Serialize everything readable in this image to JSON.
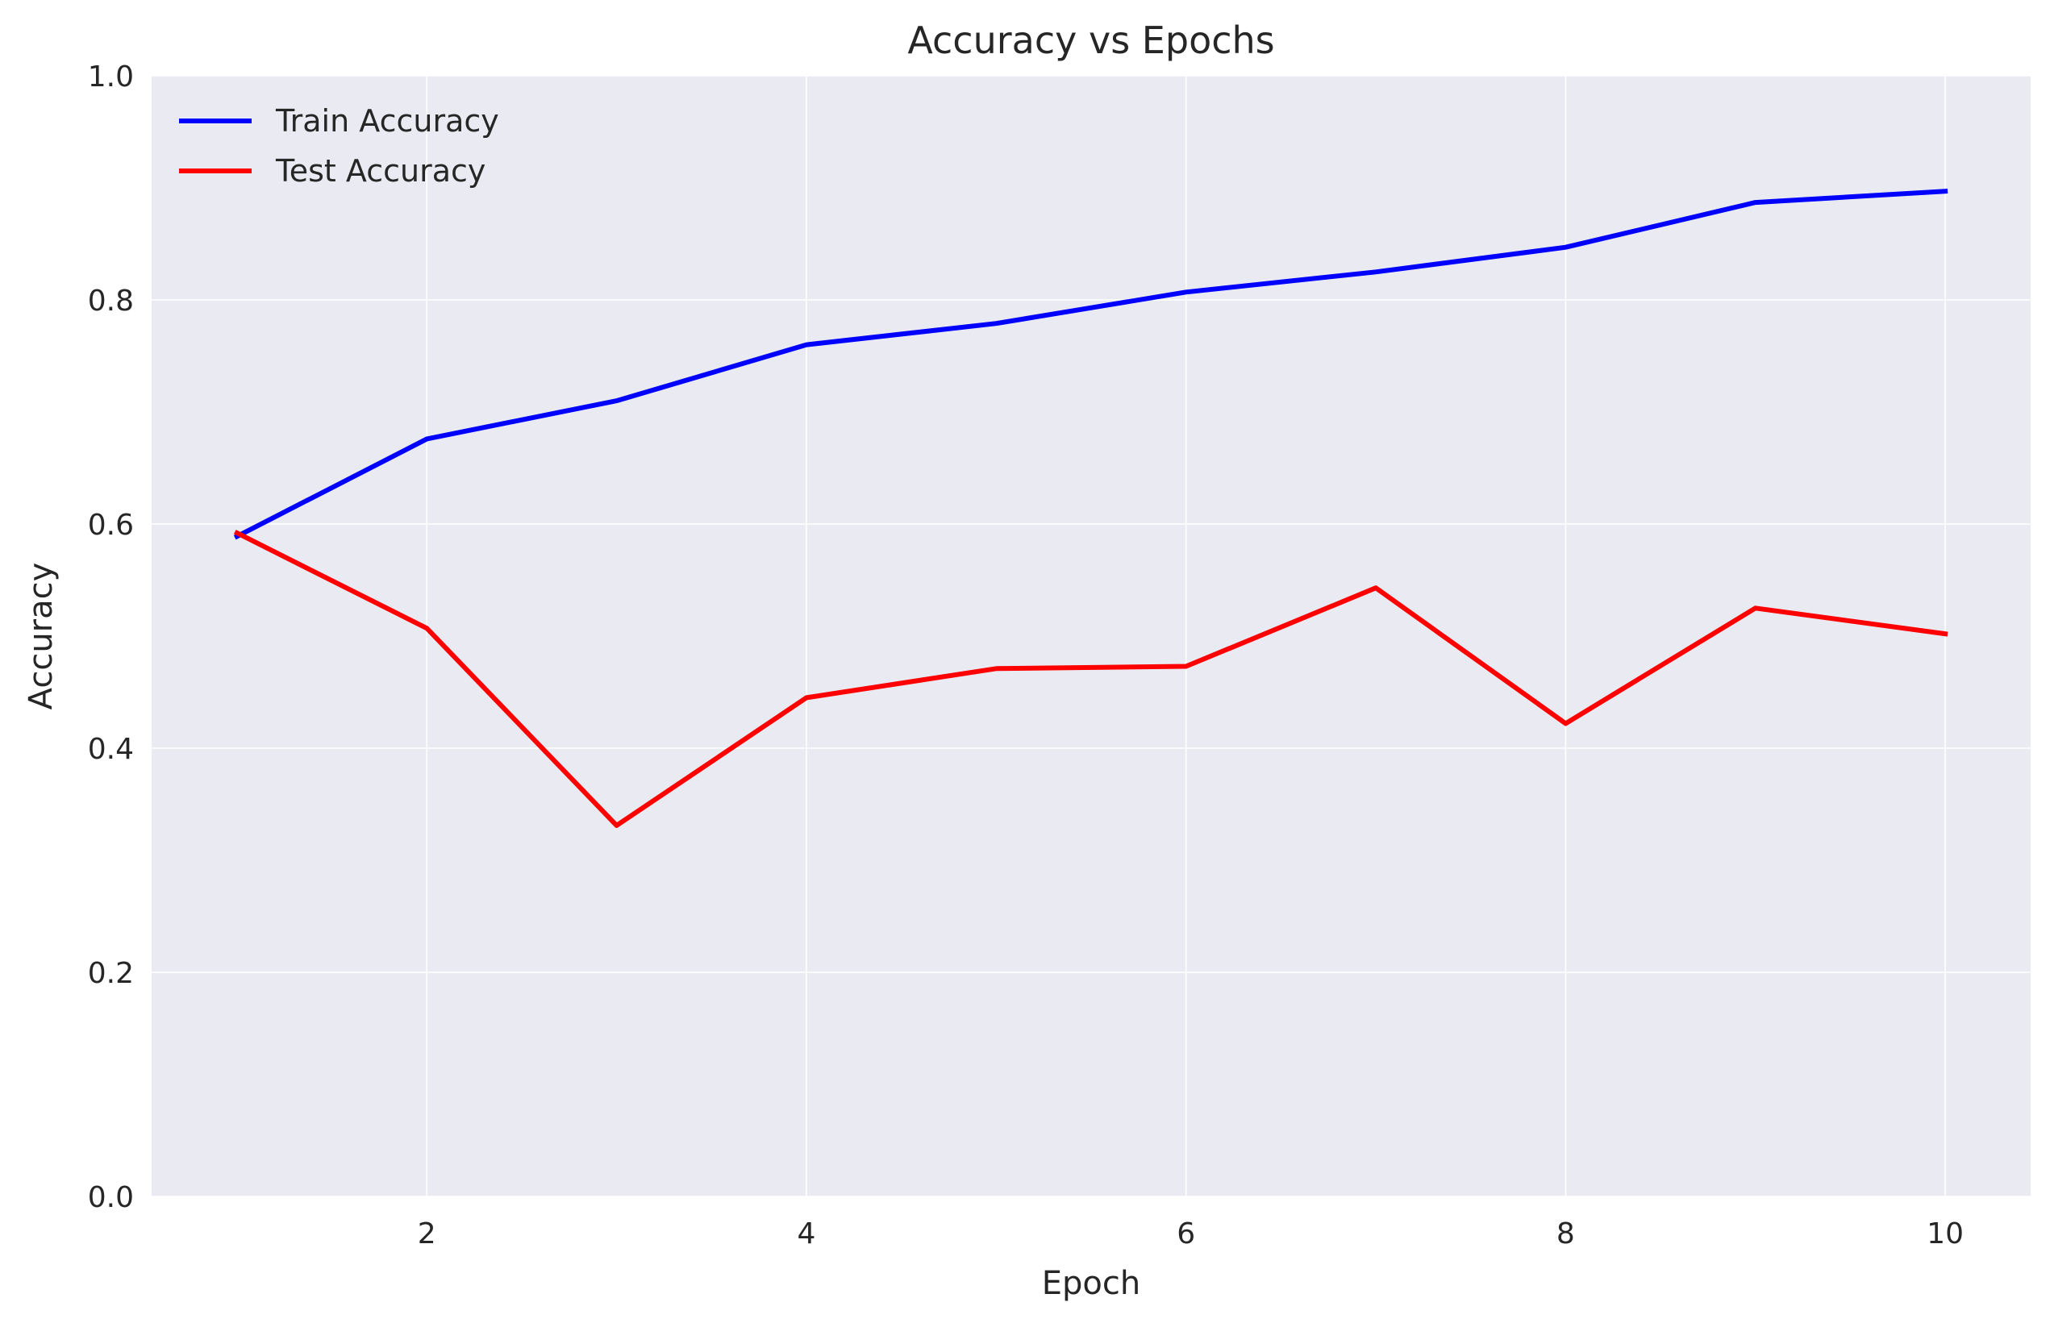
{
  "chart_data": {
    "type": "line",
    "title": "Accuracy vs Epochs",
    "xlabel": "Epoch",
    "ylabel": "Accuracy",
    "x": [
      1,
      2,
      3,
      4,
      5,
      6,
      7,
      8,
      9,
      10
    ],
    "xlim": [
      0.55,
      10.45
    ],
    "ylim": [
      0.0,
      1.0
    ],
    "xticks": [
      2,
      4,
      6,
      8,
      10
    ],
    "xtick_labels": [
      "2",
      "4",
      "6",
      "8",
      "10"
    ],
    "yticks": [
      0.0,
      0.2,
      0.4,
      0.6,
      0.8,
      1.0
    ],
    "ytick_labels": [
      "0.0",
      "0.2",
      "0.4",
      "0.6",
      "0.8",
      "1.0"
    ],
    "grid": true,
    "legend_position": "upper-left",
    "background_color": "#eaeaf2",
    "grid_color": "#ffffff",
    "series": [
      {
        "name": "Train Accuracy",
        "color": "#0000ff",
        "values": [
          0.589,
          0.676,
          0.71,
          0.76,
          0.779,
          0.807,
          0.825,
          0.847,
          0.887,
          0.897
        ]
      },
      {
        "name": "Test Accuracy",
        "color": "#ff0000",
        "values": [
          0.592,
          0.507,
          0.331,
          0.445,
          0.471,
          0.473,
          0.543,
          0.422,
          0.525,
          0.502
        ]
      }
    ]
  }
}
